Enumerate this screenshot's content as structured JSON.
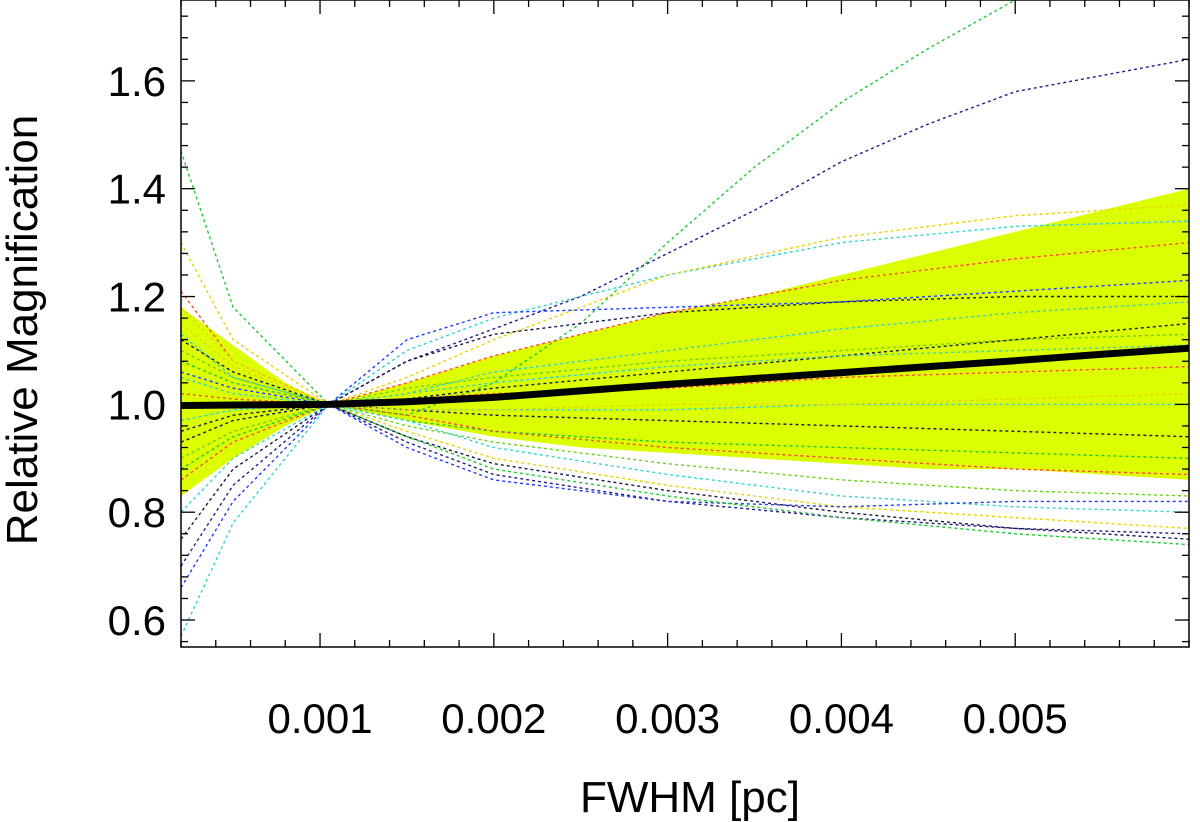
{
  "chart_data": {
    "type": "line",
    "title": "",
    "xlabel": "FWHM [pc]",
    "ylabel": "Relative Magnification",
    "xlim": [
      0.0002,
      0.006
    ],
    "ylim": [
      0.55,
      1.75
    ],
    "x_ticks": [
      {
        "value": 0.001,
        "label": "0.001"
      },
      {
        "value": 0.002,
        "label": "0.002"
      },
      {
        "value": 0.003,
        "label": "0.003"
      },
      {
        "value": 0.004,
        "label": "0.004"
      },
      {
        "value": 0.005,
        "label": "0.005"
      }
    ],
    "y_ticks": [
      {
        "value": 0.6,
        "label": "0.6"
      },
      {
        "value": 0.8,
        "label": "0.8"
      },
      {
        "value": 1.0,
        "label": "1.0"
      },
      {
        "value": 1.2,
        "label": "1.2"
      },
      {
        "value": 1.4,
        "label": "1.4"
      },
      {
        "value": 1.6,
        "label": "1.6"
      }
    ],
    "grid": false,
    "legend": "none",
    "colors": {
      "band": "#dcff00",
      "median": "#000000",
      "dashed": [
        "#22c832",
        "#2a1a8c",
        "#e8d200",
        "#33d6c8",
        "#ff4a3a",
        "#1e3cff",
        "#1a1a4a",
        "#6ad020"
      ]
    },
    "band": {
      "x": [
        0.0002,
        0.0005,
        0.0008,
        0.00105,
        0.0015,
        0.002,
        0.0025,
        0.003,
        0.0035,
        0.004,
        0.0045,
        0.005,
        0.0055,
        0.006
      ],
      "upper": [
        1.18,
        1.11,
        1.04,
        1.0,
        1.04,
        1.09,
        1.13,
        1.17,
        1.2,
        1.24,
        1.28,
        1.32,
        1.36,
        1.4
      ],
      "lower": [
        0.83,
        0.9,
        0.96,
        1.0,
        0.97,
        0.94,
        0.92,
        0.91,
        0.9,
        0.89,
        0.88,
        0.88,
        0.87,
        0.86
      ]
    },
    "median": {
      "x": [
        0.0002,
        0.0006,
        0.00105,
        0.0015,
        0.002,
        0.0025,
        0.003,
        0.0035,
        0.004,
        0.0045,
        0.005,
        0.0055,
        0.006
      ],
      "y": [
        0.998,
        0.999,
        1.0,
        1.005,
        1.013,
        1.025,
        1.037,
        1.048,
        1.059,
        1.07,
        1.081,
        1.093,
        1.104
      ]
    },
    "series": [
      {
        "x": [
          0.0002,
          0.0005,
          0.00105,
          0.0015,
          0.002,
          0.0025,
          0.003,
          0.0035,
          0.004,
          0.0045,
          0.005
        ],
        "y": [
          1.47,
          1.18,
          1.0,
          0.98,
          1.04,
          1.15,
          1.3,
          1.44,
          1.56,
          1.66,
          1.75
        ],
        "color_index": 0
      },
      {
        "x": [
          0.0002,
          0.0005,
          0.00105,
          0.0015,
          0.002,
          0.0025,
          0.003,
          0.0035,
          0.004,
          0.0045,
          0.005,
          0.0055,
          0.006
        ],
        "y": [
          0.7,
          0.85,
          1.0,
          1.08,
          1.14,
          1.2,
          1.28,
          1.36,
          1.45,
          1.52,
          1.58,
          1.61,
          1.64
        ],
        "color_index": 1
      },
      {
        "x": [
          0.0002,
          0.0005,
          0.00105,
          0.0015,
          0.002,
          0.003,
          0.004,
          0.005,
          0.006
        ],
        "y": [
          0.57,
          0.78,
          1.0,
          1.1,
          1.16,
          1.24,
          1.3,
          1.33,
          1.34
        ],
        "color_index": 3
      },
      {
        "x": [
          0.0002,
          0.0005,
          0.00105,
          0.0015,
          0.002,
          0.003,
          0.004,
          0.005,
          0.006
        ],
        "y": [
          1.3,
          1.12,
          1.0,
          1.05,
          1.12,
          1.24,
          1.31,
          1.35,
          1.37
        ],
        "color_index": 2
      },
      {
        "x": [
          0.0002,
          0.0005,
          0.00105,
          0.0015,
          0.002,
          0.003,
          0.004,
          0.005,
          0.006
        ],
        "y": [
          1.21,
          1.08,
          1.0,
          1.04,
          1.09,
          1.17,
          1.23,
          1.27,
          1.3
        ],
        "color_index": 4
      },
      {
        "x": [
          0.0002,
          0.0005,
          0.00105,
          0.0015,
          0.002,
          0.003,
          0.004,
          0.005,
          0.006
        ],
        "y": [
          0.66,
          0.82,
          1.0,
          1.12,
          1.17,
          1.18,
          1.19,
          1.21,
          1.23
        ],
        "color_index": 5
      },
      {
        "x": [
          0.0002,
          0.0005,
          0.00105,
          0.0015,
          0.002,
          0.003,
          0.004,
          0.005,
          0.006
        ],
        "y": [
          0.75,
          0.88,
          1.0,
          1.08,
          1.13,
          1.17,
          1.19,
          1.2,
          1.2
        ],
        "color_index": 6
      },
      {
        "x": [
          0.0002,
          0.0005,
          0.00105,
          0.0015,
          0.002,
          0.003,
          0.004,
          0.005,
          0.006
        ],
        "y": [
          1.13,
          1.05,
          1.0,
          1.02,
          1.06,
          1.1,
          1.14,
          1.17,
          1.19
        ],
        "color_index": 3
      },
      {
        "x": [
          0.0002,
          0.0005,
          0.00105,
          0.0015,
          0.002,
          0.003,
          0.004,
          0.005,
          0.006
        ],
        "y": [
          0.9,
          0.95,
          1.0,
          1.03,
          1.05,
          1.08,
          1.1,
          1.12,
          1.13
        ],
        "color_index": 7
      },
      {
        "x": [
          0.0002,
          0.0005,
          0.00105,
          0.0015,
          0.002,
          0.003,
          0.004,
          0.005,
          0.006
        ],
        "y": [
          1.02,
          1.01,
          1.0,
          1.01,
          1.02,
          1.03,
          1.05,
          1.06,
          1.07
        ],
        "color_index": 4
      },
      {
        "x": [
          0.0002,
          0.0005,
          0.00105,
          0.0015,
          0.002,
          0.003,
          0.004,
          0.005,
          0.006
        ],
        "y": [
          1.05,
          1.02,
          1.0,
          0.99,
          0.99,
          0.99,
          1.0,
          1.0,
          1.0
        ],
        "color_index": 3
      },
      {
        "x": [
          0.0002,
          0.0005,
          0.00105,
          0.0015,
          0.002,
          0.003,
          0.004,
          0.005,
          0.006
        ],
        "y": [
          0.95,
          0.98,
          1.0,
          0.99,
          0.98,
          0.97,
          0.96,
          0.95,
          0.94
        ],
        "color_index": 6
      },
      {
        "x": [
          0.0002,
          0.0005,
          0.00105,
          0.0015,
          0.002,
          0.003,
          0.004,
          0.005,
          0.006
        ],
        "y": [
          1.08,
          1.04,
          1.0,
          0.97,
          0.95,
          0.93,
          0.92,
          0.91,
          0.9
        ],
        "color_index": 0
      },
      {
        "x": [
          0.0002,
          0.0005,
          0.00105,
          0.0015,
          0.002,
          0.003,
          0.004,
          0.005,
          0.006
        ],
        "y": [
          0.86,
          0.93,
          1.0,
          0.98,
          0.95,
          0.92,
          0.9,
          0.88,
          0.87
        ],
        "color_index": 4
      },
      {
        "x": [
          0.0002,
          0.0005,
          0.00105,
          0.0015,
          0.002,
          0.003,
          0.004,
          0.005,
          0.006
        ],
        "y": [
          1.1,
          1.05,
          1.0,
          0.96,
          0.93,
          0.89,
          0.86,
          0.84,
          0.83
        ],
        "color_index": 7
      },
      {
        "x": [
          0.0002,
          0.0005,
          0.00105,
          0.0015,
          0.002,
          0.003,
          0.004,
          0.005,
          0.006
        ],
        "y": [
          0.8,
          0.9,
          1.0,
          0.97,
          0.92,
          0.87,
          0.83,
          0.81,
          0.8
        ],
        "color_index": 3
      },
      {
        "x": [
          0.0002,
          0.0005,
          0.00105,
          0.0015,
          0.002,
          0.003,
          0.004,
          0.005,
          0.006
        ],
        "y": [
          1.15,
          1.07,
          1.0,
          0.95,
          0.9,
          0.85,
          0.81,
          0.79,
          0.77
        ],
        "color_index": 2
      },
      {
        "x": [
          0.0002,
          0.0005,
          0.00105,
          0.0015,
          0.002,
          0.003,
          0.004,
          0.005,
          0.006
        ],
        "y": [
          0.93,
          0.97,
          1.0,
          0.94,
          0.89,
          0.84,
          0.8,
          0.77,
          0.75
        ],
        "color_index": 6
      },
      {
        "x": [
          0.0002,
          0.0005,
          0.00105,
          0.0015,
          0.002,
          0.003,
          0.004,
          0.005,
          0.006
        ],
        "y": [
          1.0,
          1.0,
          1.0,
          0.93,
          0.87,
          0.82,
          0.79,
          0.77,
          0.76
        ],
        "color_index": 1
      },
      {
        "x": [
          0.0002,
          0.0005,
          0.00105,
          0.0015,
          0.002,
          0.003,
          0.004,
          0.005,
          0.006
        ],
        "y": [
          1.06,
          1.03,
          1.0,
          0.92,
          0.86,
          0.82,
          0.81,
          0.82,
          0.82
        ],
        "color_index": 5
      },
      {
        "x": [
          0.0002,
          0.0005,
          0.00105,
          0.0015,
          0.002,
          0.003,
          0.004,
          0.005,
          0.006
        ],
        "y": [
          0.88,
          0.94,
          1.0,
          0.94,
          0.88,
          0.83,
          0.79,
          0.76,
          0.74
        ],
        "color_index": 0
      },
      {
        "x": [
          0.0002,
          0.0005,
          0.00105,
          0.0015,
          0.002,
          0.003,
          0.004,
          0.005,
          0.006
        ],
        "y": [
          1.12,
          1.06,
          1.0,
          1.01,
          1.03,
          1.06,
          1.09,
          1.12,
          1.15
        ],
        "color_index": 6
      },
      {
        "x": [
          0.0002,
          0.0005,
          0.00105,
          0.0015,
          0.002,
          0.003,
          0.004,
          0.005,
          0.006
        ],
        "y": [
          0.97,
          0.99,
          1.0,
          1.02,
          1.04,
          1.07,
          1.09,
          1.1,
          1.11
        ],
        "color_index": 3
      },
      {
        "x": [
          0.0002,
          0.0005,
          0.00105,
          0.0015,
          0.002,
          0.003,
          0.004,
          0.005,
          0.006
        ],
        "y": [
          1.18,
          1.08,
          1.0,
          0.99,
          0.99,
          1.0,
          1.0,
          1.01,
          1.02
        ],
        "color_index": 2
      }
    ]
  }
}
